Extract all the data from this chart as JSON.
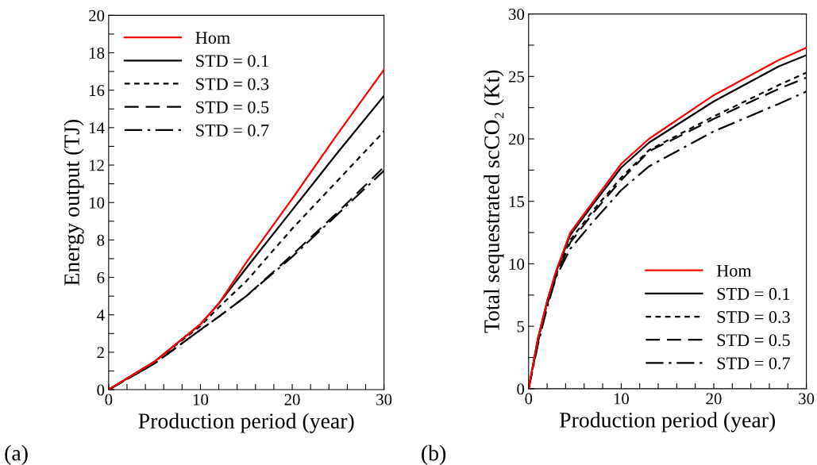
{
  "chart_data": [
    {
      "type": "line",
      "xlabel": "Production period (year)",
      "ylabel": "Energy output (TJ)",
      "annotations": [
        "(a)"
      ],
      "legend": "top left",
      "grid": false,
      "xlim": [
        0,
        30
      ],
      "ylim": [
        0,
        20
      ],
      "xticks": [
        0,
        {
          "value": 2,
          "label": null
        },
        {
          "value": 4,
          "label": null
        },
        {
          "value": 6,
          "label": null
        },
        {
          "value": 8,
          "label": null
        },
        10,
        {
          "value": 12,
          "label": null
        },
        {
          "value": 14,
          "label": null
        },
        {
          "value": 16,
          "label": null
        },
        {
          "value": 18,
          "label": null
        },
        20,
        {
          "value": 22,
          "label": null
        },
        {
          "value": 24,
          "label": null
        },
        {
          "value": 26,
          "label": null
        },
        {
          "value": 28,
          "label": null
        },
        30
      ],
      "yticks": [
        0,
        {
          "value": 1,
          "label": null
        },
        2,
        {
          "value": 3,
          "label": null
        },
        4,
        {
          "value": 5,
          "label": null
        },
        6,
        {
          "value": 7,
          "label": null
        },
        8,
        {
          "value": 9,
          "label": null
        },
        10,
        {
          "value": 11,
          "label": null
        },
        12,
        {
          "value": 13,
          "label": null
        },
        14,
        {
          "value": 15,
          "label": null
        },
        16,
        {
          "value": 17,
          "label": null
        },
        18,
        {
          "value": 19,
          "label": null
        },
        20
      ],
      "series": [
        {
          "name": "Hom",
          "color": "#ff0000",
          "line_style": "solid",
          "x": [
            0,
            5,
            10,
            12,
            15,
            20,
            25,
            30
          ],
          "values": [
            0,
            1.5,
            3.5,
            4.6,
            6.8,
            10.2,
            13.7,
            17.1
          ]
        },
        {
          "name": "STD = 0.1",
          "color": "#000000",
          "line_style": "solid",
          "x": [
            0,
            5,
            10,
            12,
            15,
            20,
            25,
            30
          ],
          "values": [
            0,
            1.5,
            3.5,
            4.6,
            6.5,
            9.6,
            12.7,
            15.7
          ]
        },
        {
          "name": "STD = 0.3",
          "color": "#000000",
          "line_style": "dotted",
          "x": [
            0,
            5,
            10,
            12,
            15,
            20,
            25,
            30
          ],
          "values": [
            0,
            1.5,
            3.4,
            4.4,
            5.8,
            8.6,
            11.2,
            13.8
          ]
        },
        {
          "name": "STD = 0.5",
          "color": "#000000",
          "line_style": "dashed",
          "x": [
            0,
            5,
            10,
            12,
            15,
            20,
            25,
            30
          ],
          "values": [
            0,
            1.4,
            3.2,
            3.9,
            5.0,
            7.2,
            9.5,
            11.9
          ]
        },
        {
          "name": "STD = 0.7",
          "color": "#000000",
          "line_style": "dashdot",
          "x": [
            0,
            5,
            10,
            12,
            15,
            20,
            25,
            30
          ],
          "values": [
            0,
            1.4,
            3.2,
            3.9,
            5.0,
            7.1,
            9.4,
            11.7
          ]
        }
      ]
    },
    {
      "type": "line",
      "xlabel": "Production period (year)",
      "ylabel": "Total sequestrated scCO₂ (Kt)",
      "annotations": [
        "(b)"
      ],
      "legend": "bottom right",
      "grid": false,
      "xlim": [
        0,
        30
      ],
      "ylim": [
        0,
        30
      ],
      "xticks": [
        0,
        {
          "value": 2,
          "label": null
        },
        {
          "value": 4,
          "label": null
        },
        {
          "value": 6,
          "label": null
        },
        {
          "value": 8,
          "label": null
        },
        10,
        {
          "value": 12,
          "label": null
        },
        {
          "value": 14,
          "label": null
        },
        {
          "value": 16,
          "label": null
        },
        {
          "value": 18,
          "label": null
        },
        20,
        {
          "value": 22,
          "label": null
        },
        {
          "value": 24,
          "label": null
        },
        {
          "value": 26,
          "label": null
        },
        {
          "value": 28,
          "label": null
        },
        30
      ],
      "yticks": [
        0,
        {
          "value": 2.5,
          "label": null
        },
        5,
        {
          "value": 7.5,
          "label": null
        },
        10,
        {
          "value": 12.5,
          "label": null
        },
        15,
        {
          "value": 17.5,
          "label": null
        },
        20,
        {
          "value": 22.5,
          "label": null
        },
        25,
        {
          "value": 27.5,
          "label": null
        },
        30
      ],
      "series": [
        {
          "name": "Hom",
          "color": "#ff0000",
          "line_style": "solid",
          "x": [
            0,
            1,
            2,
            3,
            4.5,
            7,
            10,
            13,
            20,
            27,
            30
          ],
          "values": [
            0,
            4,
            7,
            9.5,
            12.5,
            15,
            18,
            20,
            23.5,
            26.3,
            27.3
          ]
        },
        {
          "name": "STD = 0.1",
          "color": "#000000",
          "line_style": "solid",
          "x": [
            0,
            1,
            2,
            3,
            4.5,
            7,
            10,
            13,
            20,
            27,
            30
          ],
          "values": [
            0,
            4,
            7,
            9.4,
            12.3,
            14.8,
            17.7,
            19.7,
            23,
            25.8,
            26.7
          ]
        },
        {
          "name": "STD = 0.3",
          "color": "#000000",
          "line_style": "dotted",
          "x": [
            0,
            1,
            2,
            3,
            4.5,
            7,
            10,
            13,
            20,
            27,
            30
          ],
          "values": [
            0,
            3.8,
            6.8,
            9.2,
            11.9,
            14.3,
            16.9,
            19.1,
            21.8,
            24.3,
            25.3
          ]
        },
        {
          "name": "STD = 0.5",
          "color": "#000000",
          "line_style": "dashed",
          "x": [
            0,
            1,
            2,
            3,
            4.5,
            7,
            10,
            13,
            20,
            27,
            30
          ],
          "values": [
            0,
            3.7,
            6.7,
            9.1,
            11.7,
            14.1,
            16.7,
            19,
            21.6,
            24,
            24.9
          ]
        },
        {
          "name": "STD = 0.7",
          "color": "#000000",
          "line_style": "dashdot",
          "x": [
            0,
            1,
            2,
            3,
            4.5,
            7,
            10,
            13,
            20,
            27,
            30
          ],
          "values": [
            0,
            3.5,
            6.5,
            9,
            11.2,
            13.4,
            15.9,
            17.8,
            20.6,
            22.8,
            23.8
          ]
        }
      ]
    }
  ]
}
